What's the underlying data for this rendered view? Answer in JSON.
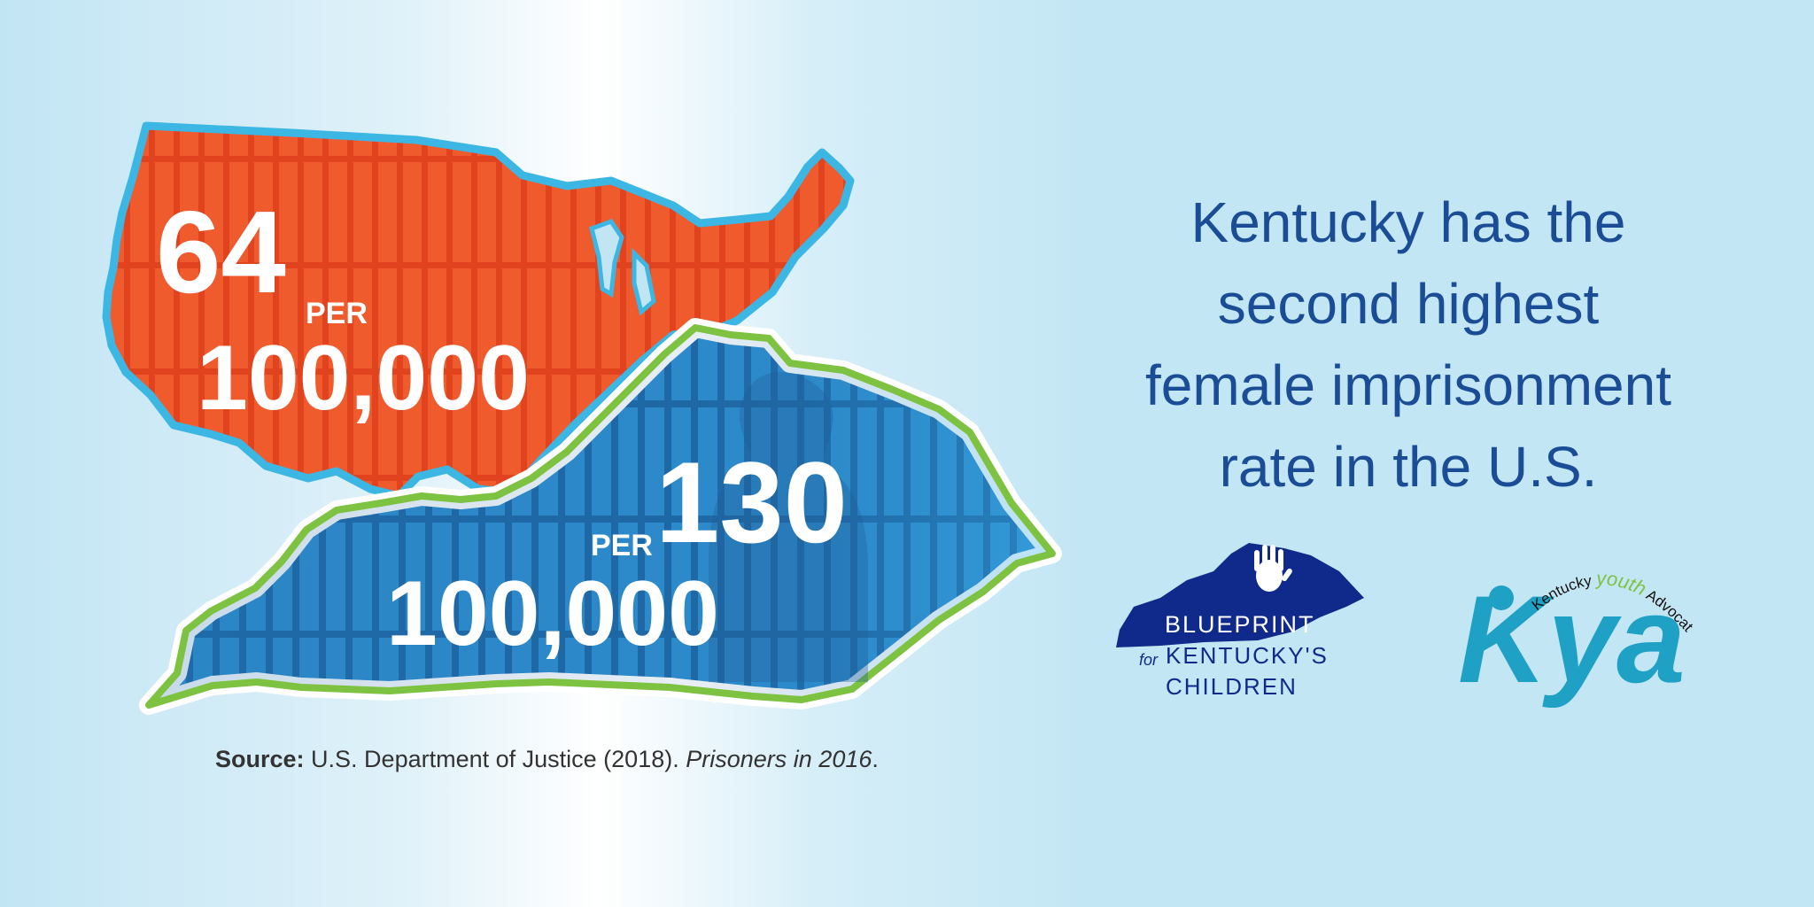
{
  "us_stat": {
    "number": "64",
    "per": "PER",
    "denominator": "100,000"
  },
  "ky_stat": {
    "number": "130",
    "per": "PER",
    "denominator": "100,000"
  },
  "headline_lines": [
    "Kentucky has the",
    "second highest",
    "female imprisonment",
    "rate in the U.S."
  ],
  "source": {
    "label": "Source:",
    "text": "U.S. Department of Justice (2018).",
    "title": "Prisoners in 2016",
    "end": "."
  },
  "logos": {
    "blueprint": {
      "line1": "BLUEPRINT",
      "prefix": "for",
      "line2": "KENTUCKY'S",
      "line3": "CHILDREN"
    },
    "kya": {
      "letters": "Kya",
      "arc_a": "Kentucky",
      "arc_b": "youth",
      "arc_c": "Advocates"
    }
  },
  "colors": {
    "us_fill": "#ee5a2c",
    "us_outline": "#3cb6e3",
    "ky_fill": "#2b7dbf",
    "ky_outline": "#7ec242",
    "headline": "#1a4d96",
    "blueprint": "#0f2a8a",
    "kya": "#1fa1c6"
  }
}
